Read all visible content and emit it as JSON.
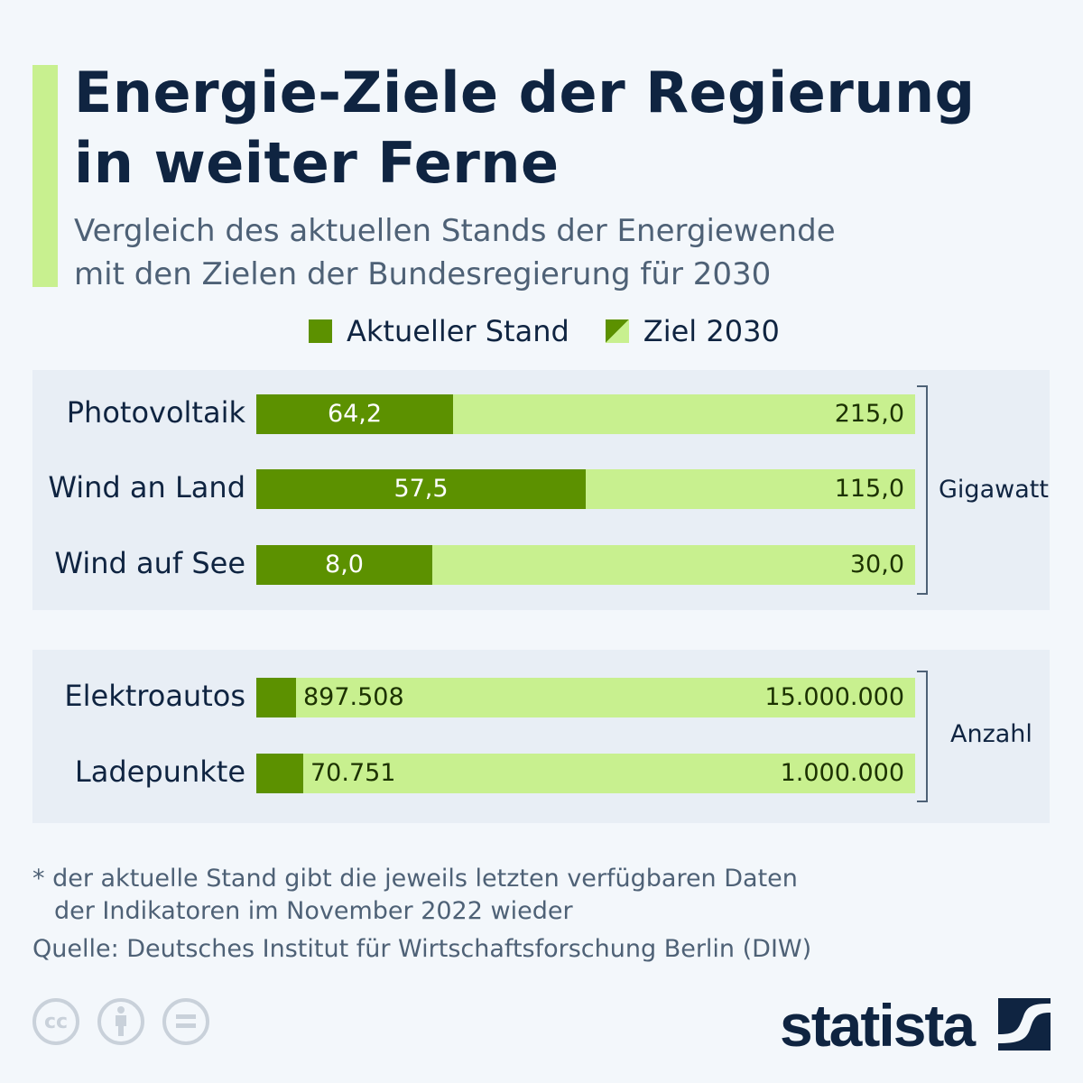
{
  "header": {
    "title_line1": "Energie-Ziele der Regierung",
    "title_line2": "in weiter Ferne",
    "subtitle_line1": "Vergleich des aktuellen Stands der Energiewende",
    "subtitle_line2": "mit den Zielen der Bundesregierung für 2030"
  },
  "colors": {
    "current": "#5c9100",
    "target": "#c8f08f",
    "accent": "#c8f08f",
    "text": "#0f2441"
  },
  "chart_data": [
    {
      "type": "bar",
      "orientation": "horizontal",
      "unit": "Gigawatt",
      "categories": [
        "Photovoltaik",
        "Wind an Land",
        "Wind auf See"
      ],
      "series": [
        {
          "name": "Aktueller Stand",
          "values": [
            64.2,
            57.5,
            8.0
          ],
          "labels": [
            "64,2",
            "57,5",
            "8,0"
          ]
        },
        {
          "name": "Ziel 2030",
          "values": [
            215.0,
            115.0,
            30.0
          ],
          "labels": [
            "215,0",
            "115,0",
            "30,0"
          ]
        }
      ]
    },
    {
      "type": "bar",
      "orientation": "horizontal",
      "unit": "Anzahl",
      "categories": [
        "Elektroautos",
        "Ladepunkte"
      ],
      "series": [
        {
          "name": "Aktueller Stand",
          "values": [
            897508,
            70751
          ],
          "labels": [
            "897.508",
            "70.751"
          ]
        },
        {
          "name": "Ziel 2030",
          "values": [
            15000000,
            1000000
          ],
          "labels": [
            "15.000.000",
            "1.000.000"
          ]
        }
      ]
    }
  ],
  "legend": {
    "current": "Aktueller Stand",
    "target": "Ziel 2030"
  },
  "footer": {
    "note_line1": "* der aktuelle Stand gibt die jeweils letzten verfügbaren Daten",
    "note_line2": "der Indikatoren im November 2022 wieder",
    "source": "Quelle: Deutsches Institut für Wirtschaftsforschung Berlin (DIW)",
    "logo": "statista",
    "license_icons": [
      "cc-icon",
      "attribution-icon",
      "no-derivatives-icon"
    ]
  }
}
